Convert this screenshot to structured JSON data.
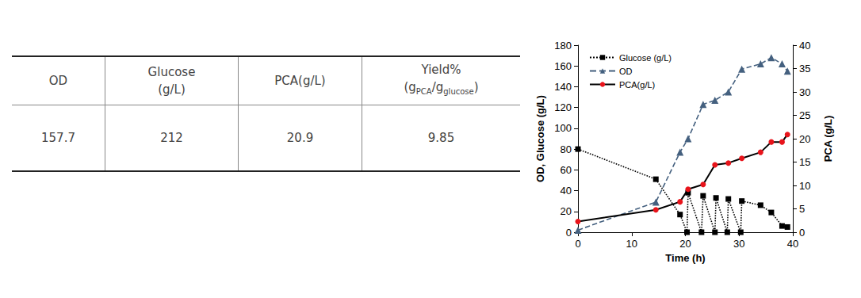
{
  "table": {
    "header": [
      [
        [
          "OD"
        ]
      ],
      [
        [
          "Glucose"
        ],
        [
          "(g/L)"
        ]
      ],
      [
        [
          "PCA(g/L)"
        ]
      ],
      [
        [
          "Yield%"
        ],
        [
          "(g",
          {
            "sub": "PCA"
          },
          "/g",
          {
            "sub": "glucose"
          },
          ")"
        ]
      ]
    ],
    "rows": [
      [
        "157.7",
        "212",
        "20.9",
        "9.85"
      ]
    ]
  },
  "chart_data": {
    "type": "line",
    "x_label": "Time (h)",
    "y_label": "OD, Glucose (g/L)",
    "y2_label": "PCA (g/L)",
    "xlim": [
      0,
      40
    ],
    "xticks": [
      0,
      10,
      20,
      30,
      40
    ],
    "ylim": [
      0,
      180
    ],
    "yticks": [
      0,
      20,
      40,
      60,
      80,
      100,
      120,
      140,
      160,
      180
    ],
    "y2lim": [
      0,
      40
    ],
    "y2ticks": [
      0,
      5,
      10,
      15,
      20,
      25,
      30,
      35,
      40
    ],
    "grid": false,
    "legend": "upper left",
    "series": [
      {
        "name": "Glucose (g/L)",
        "color": "#000000",
        "marker": "square",
        "line_style": "dotted",
        "x": [
          0,
          14.5,
          19,
          20.3,
          20.5,
          23,
          23.3,
          25.5,
          25.7,
          27.8,
          28,
          30.3,
          30.5,
          34,
          36,
          38,
          39
        ],
        "values": [
          80,
          51,
          17,
          0,
          38,
          0,
          35,
          0,
          33,
          0,
          32,
          0,
          30,
          26,
          19,
          6,
          5
        ]
      },
      {
        "name": "OD",
        "color": "#44607f",
        "marker": "triangle",
        "line_style": "dashed",
        "x": [
          0,
          14.5,
          19,
          20.5,
          23.3,
          25.5,
          28,
          30.5,
          34,
          36,
          38,
          39
        ],
        "values": [
          2,
          29,
          77,
          90,
          123,
          127,
          135,
          157,
          162,
          168,
          162,
          155
        ]
      },
      {
        "name": "PCA(g/L)",
        "color": "#e8141b",
        "marker": "circle",
        "line_style": "solid",
        "axis": "y2",
        "x": [
          0,
          14.5,
          19,
          20.5,
          23.3,
          25.5,
          28,
          30.5,
          34,
          36,
          38,
          39
        ],
        "values": [
          2.3,
          4.8,
          6.5,
          9.2,
          10.2,
          14.4,
          14.8,
          15.8,
          17.1,
          19.3,
          19.3,
          20.9
        ]
      }
    ]
  }
}
